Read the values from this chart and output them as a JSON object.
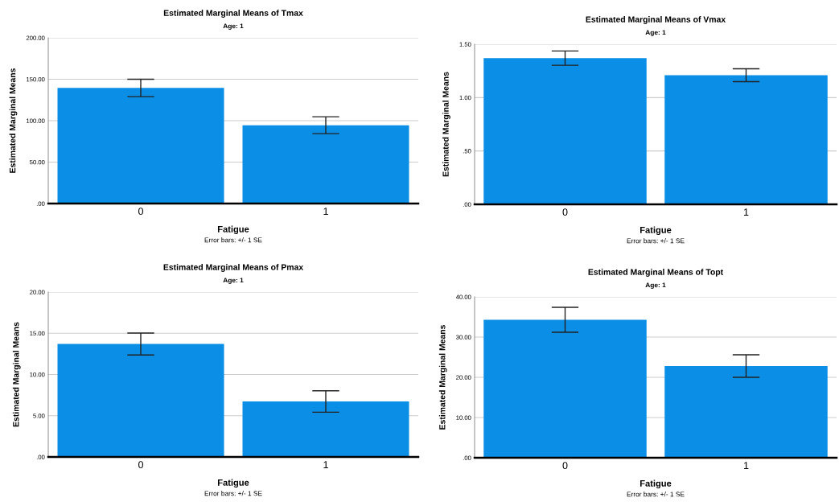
{
  "chart_data": [
    {
      "type": "bar",
      "title": "Estimated Marginal Means of Tmax",
      "subtitle": "Age: 1",
      "xlabel": "Fatigue",
      "ylabel": "Estimated Marginal Means",
      "annotations": [
        "Error bars: +/- 1 SE"
      ],
      "categories": [
        "0",
        "1"
      ],
      "values": [
        139.5,
        94.5
      ],
      "errors": [
        10.5,
        10.2
      ],
      "color": "#0a8ee6",
      "ylim": [
        0,
        200
      ],
      "yticks": [
        {
          "value": 0,
          "label": ".00"
        },
        {
          "value": 50,
          "label": "50.00"
        },
        {
          "value": 100,
          "label": "100.00"
        },
        {
          "value": 150,
          "label": "150.00"
        },
        {
          "value": 200,
          "label": "200.00"
        }
      ],
      "grid": "y"
    },
    {
      "type": "bar",
      "title": "Estimated Marginal Means of Vmax",
      "subtitle": "Age: 1",
      "xlabel": "Fatigue",
      "ylabel": "Estimated Marginal Means",
      "annotations": [
        "Error bars: +/- 1 SE"
      ],
      "categories": [
        "0",
        "1"
      ],
      "values": [
        1.37,
        1.21
      ],
      "errors": [
        0.067,
        0.06
      ],
      "color": "#0a8ee6",
      "ylim": [
        0,
        1.5
      ],
      "yticks": [
        {
          "value": 0,
          "label": ".00"
        },
        {
          "value": 0.5,
          "label": ".50"
        },
        {
          "value": 1.0,
          "label": "1.00"
        },
        {
          "value": 1.5,
          "label": "1.50"
        }
      ],
      "grid": "y"
    },
    {
      "type": "bar",
      "title": "Estimated Marginal Means of Pmax",
      "subtitle": "Age: 1",
      "xlabel": "Fatigue",
      "ylabel": "Estimated Marginal Means",
      "annotations": [
        "Error bars: +/- 1 SE"
      ],
      "categories": [
        "0",
        "1"
      ],
      "values": [
        13.7,
        6.73
      ],
      "errors": [
        1.33,
        1.3
      ],
      "color": "#0a8ee6",
      "ylim": [
        0,
        20
      ],
      "yticks": [
        {
          "value": 0,
          "label": ".00"
        },
        {
          "value": 5,
          "label": "5.00"
        },
        {
          "value": 10,
          "label": "10.00"
        },
        {
          "value": 15,
          "label": "15.00"
        },
        {
          "value": 20,
          "label": "20.00"
        }
      ],
      "grid": "y"
    },
    {
      "type": "bar",
      "title": "Estimated Marginal Means of Topt",
      "subtitle": "Age: 1",
      "xlabel": "Fatigue",
      "ylabel": "Estimated Marginal Means",
      "annotations": [
        "Error bars: +/- 1 SE"
      ],
      "categories": [
        "0",
        "1"
      ],
      "values": [
        34.3,
        22.8
      ],
      "errors": [
        3.1,
        2.8
      ],
      "color": "#0a8ee6",
      "ylim": [
        0,
        40
      ],
      "yticks": [
        {
          "value": 0,
          "label": ".00"
        },
        {
          "value": 10,
          "label": "10.00"
        },
        {
          "value": 20,
          "label": "20.00"
        },
        {
          "value": 30,
          "label": "30.00"
        },
        {
          "value": 40,
          "label": "40.00"
        }
      ],
      "grid": "y"
    }
  ]
}
